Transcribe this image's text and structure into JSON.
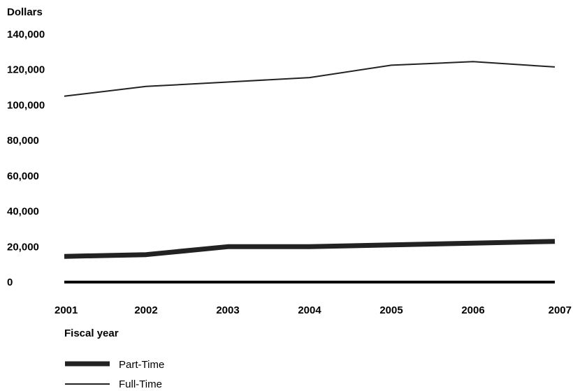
{
  "chart_data": {
    "type": "line",
    "ylabel": "Dollars",
    "xlabel": "Fiscal year",
    "x": [
      "2001",
      "2002",
      "2003",
      "2004",
      "2005",
      "2006",
      "2007"
    ],
    "ylim": [
      0,
      140000
    ],
    "yticks": [
      "0",
      "20,000",
      "40,000",
      "60,000",
      "80,000",
      "100,000",
      "120,000",
      "140,000"
    ],
    "grid": false,
    "legend_position": "bottom-left",
    "series": [
      {
        "name": "Part-Time",
        "values": [
          14500,
          15500,
          20000,
          20000,
          21000,
          22000,
          23000
        ],
        "color": "#222222"
      },
      {
        "name": "Full-Time",
        "values": [
          105000,
          110500,
          113000,
          115500,
          122500,
          124500,
          121500
        ],
        "color": "#222222"
      }
    ]
  }
}
